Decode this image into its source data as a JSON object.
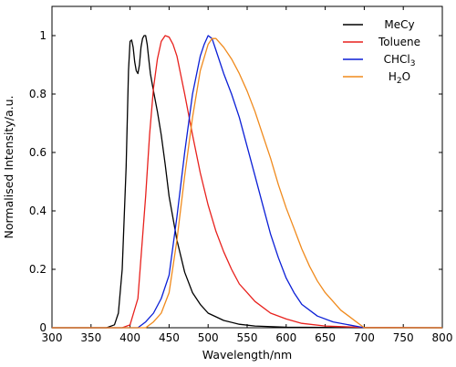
{
  "chart_data": {
    "type": "line",
    "xlabel": "Wavelength/nm",
    "ylabel": "Normalised Intensity/a.u.",
    "xlim": [
      300,
      800
    ],
    "ylim": [
      0,
      1.1
    ],
    "xticks": [
      300,
      350,
      400,
      450,
      500,
      550,
      600,
      650,
      700,
      750,
      800
    ],
    "yticks": [
      0,
      0.2,
      0.4,
      0.6,
      0.8,
      1
    ],
    "ytick_labels": [
      "0",
      "0.2",
      "0.4",
      "0.6",
      "0.8",
      "1"
    ],
    "grid": false,
    "legend_position": "top-right",
    "series": [
      {
        "name": "MeCy",
        "label_main": "MeCy",
        "label_sub": "",
        "label_tail": "",
        "color": "#000000",
        "x": [
          300,
          370,
          380,
          385,
          390,
          395,
          398,
          400,
          402,
          404,
          406,
          408,
          410,
          412,
          414,
          416,
          418,
          420,
          422,
          424,
          426,
          428,
          430,
          435,
          440,
          445,
          450,
          460,
          470,
          480,
          490,
          500,
          520,
          540,
          560,
          600,
          650,
          700,
          800
        ],
        "y": [
          0,
          0,
          0.01,
          0.05,
          0.2,
          0.55,
          0.88,
          0.98,
          0.985,
          0.96,
          0.91,
          0.88,
          0.87,
          0.9,
          0.96,
          0.99,
          1.0,
          1.0,
          0.97,
          0.92,
          0.87,
          0.84,
          0.81,
          0.74,
          0.66,
          0.56,
          0.45,
          0.3,
          0.19,
          0.12,
          0.08,
          0.05,
          0.025,
          0.012,
          0.006,
          0.002,
          0.001,
          0,
          0
        ]
      },
      {
        "name": "Toluene",
        "label_main": "Toluene",
        "label_sub": "",
        "label_tail": "",
        "color": "#e8211d",
        "x": [
          300,
          390,
          400,
          410,
          420,
          425,
          430,
          435,
          440,
          445,
          450,
          455,
          460,
          470,
          480,
          490,
          500,
          510,
          520,
          530,
          540,
          550,
          560,
          580,
          600,
          620,
          650,
          700,
          800
        ],
        "y": [
          0,
          0,
          0.01,
          0.1,
          0.45,
          0.66,
          0.82,
          0.92,
          0.98,
          1.0,
          0.995,
          0.97,
          0.93,
          0.8,
          0.66,
          0.53,
          0.42,
          0.33,
          0.26,
          0.2,
          0.15,
          0.12,
          0.09,
          0.05,
          0.03,
          0.015,
          0.006,
          0.001,
          0
        ]
      },
      {
        "name": "CHCl3",
        "label_main": "CHCl",
        "label_sub": "3",
        "label_tail": "",
        "color": "#0b1fd6",
        "x": [
          300,
          410,
          420,
          430,
          440,
          450,
          460,
          470,
          480,
          490,
          495,
          500,
          505,
          510,
          520,
          530,
          540,
          550,
          560,
          570,
          580,
          590,
          600,
          610,
          620,
          640,
          660,
          680,
          690,
          700,
          800
        ],
        "y": [
          0,
          0.0,
          0.02,
          0.05,
          0.1,
          0.18,
          0.38,
          0.6,
          0.8,
          0.93,
          0.97,
          1.0,
          0.99,
          0.95,
          0.87,
          0.8,
          0.72,
          0.62,
          0.52,
          0.42,
          0.32,
          0.24,
          0.17,
          0.12,
          0.08,
          0.04,
          0.02,
          0.01,
          0.005,
          0,
          0
        ]
      },
      {
        "name": "H2O",
        "label_main": "H",
        "label_sub": "2",
        "label_tail": "O",
        "color": "#f08a1c",
        "x": [
          300,
          420,
          430,
          440,
          450,
          460,
          470,
          480,
          490,
          500,
          505,
          510,
          520,
          530,
          540,
          550,
          560,
          570,
          580,
          590,
          600,
          610,
          620,
          630,
          640,
          650,
          660,
          670,
          680,
          690,
          700,
          800
        ],
        "y": [
          0,
          0,
          0.02,
          0.05,
          0.12,
          0.3,
          0.52,
          0.72,
          0.88,
          0.97,
          0.99,
          0.99,
          0.96,
          0.92,
          0.87,
          0.81,
          0.74,
          0.66,
          0.58,
          0.49,
          0.41,
          0.34,
          0.27,
          0.21,
          0.16,
          0.12,
          0.09,
          0.06,
          0.04,
          0.02,
          0,
          0
        ]
      }
    ]
  }
}
